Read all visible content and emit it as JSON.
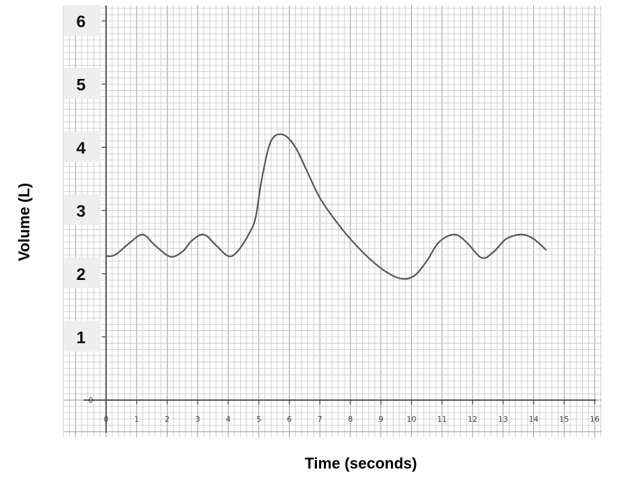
{
  "chart_data": {
    "type": "line",
    "xlabel": "Time (seconds)",
    "ylabel": "Volume (L)",
    "xlim": [
      0,
      16
    ],
    "ylim": [
      0,
      6
    ],
    "x_ticks": [
      "0",
      "1",
      "2",
      "3",
      "4",
      "5",
      "6",
      "7",
      "8",
      "9",
      "10",
      "11",
      "12",
      "13",
      "14",
      "15",
      "16"
    ],
    "y_ticks": [
      "0",
      "1",
      "2",
      "3",
      "4",
      "5",
      "6"
    ],
    "grid": true,
    "series": [
      {
        "color": "#555555",
        "x": [
          0,
          0.3,
          0.8,
          1.2,
          1.6,
          2.1,
          2.5,
          2.8,
          3.2,
          3.6,
          4.0,
          4.3,
          4.7,
          4.9,
          5.1,
          5.4,
          5.8,
          6.2,
          6.6,
          7.0,
          7.5,
          8.0,
          8.6,
          9.2,
          9.7,
          10.1,
          10.5,
          10.9,
          11.4,
          11.8,
          12.3,
          12.7,
          13.1,
          13.6,
          14.0,
          14.4
        ],
        "y": [
          2.28,
          2.3,
          2.5,
          2.62,
          2.45,
          2.27,
          2.35,
          2.52,
          2.62,
          2.45,
          2.28,
          2.35,
          2.65,
          2.9,
          3.5,
          4.1,
          4.2,
          4.0,
          3.6,
          3.2,
          2.85,
          2.55,
          2.25,
          2.02,
          1.92,
          1.97,
          2.2,
          2.5,
          2.62,
          2.5,
          2.25,
          2.35,
          2.55,
          2.62,
          2.55,
          2.38
        ]
      }
    ]
  }
}
